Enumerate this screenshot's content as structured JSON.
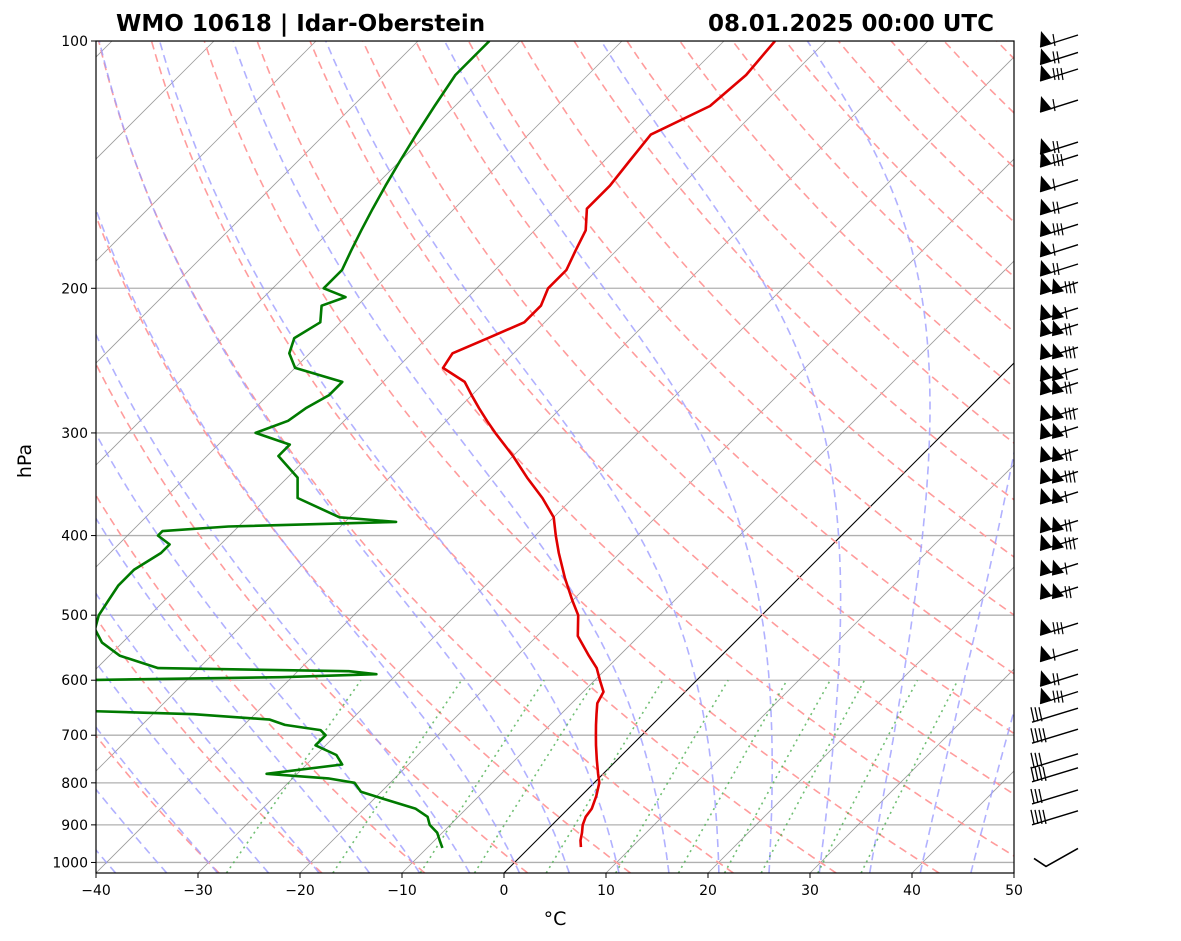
{
  "chart_data": {
    "type": "line",
    "title_left": "WMO 10618 | Idar-Oberstein",
    "title_right": "08.01.2025 00:00 UTC",
    "xlabel": "°C",
    "ylabel": "hPa",
    "xlim": [
      -40,
      50
    ],
    "ylim": [
      1030,
      100
    ],
    "y_scale": "log",
    "x_ticks": [
      "−40",
      "−30",
      "−20",
      "−10",
      "0",
      "10",
      "20",
      "30",
      "40",
      "50"
    ],
    "y_ticks": [
      "100",
      "200",
      "300",
      "400",
      "500",
      "600",
      "700",
      "800",
      "900",
      "1000"
    ],
    "grid": true,
    "background_lines": {
      "isotherms": "thin grey skewed lines every 10 °C",
      "dry_adiabats": "dashed red",
      "moist_adiabats": "dashed blue",
      "mixing_ratio": "dotted green",
      "highlighted_isotherm_c": 0
    },
    "series": [
      {
        "role": "temperature",
        "color": "#e00000",
        "points": [
          [
            100,
            -55
          ],
          [
            110,
            -54.5
          ],
          [
            120,
            -55
          ],
          [
            130,
            -58
          ],
          [
            140,
            -57.5
          ],
          [
            150,
            -57
          ],
          [
            160,
            -57
          ],
          [
            170,
            -55
          ],
          [
            180,
            -54
          ],
          [
            190,
            -53
          ],
          [
            200,
            -53
          ],
          [
            210,
            -52
          ],
          [
            220,
            -52
          ],
          [
            230,
            -54
          ],
          [
            240,
            -56
          ],
          [
            250,
            -55.5
          ],
          [
            260,
            -52
          ],
          [
            270,
            -50
          ],
          [
            280,
            -48
          ],
          [
            290,
            -46
          ],
          [
            300,
            -44
          ],
          [
            320,
            -40
          ],
          [
            340,
            -36.5
          ],
          [
            360,
            -33
          ],
          [
            380,
            -30
          ],
          [
            400,
            -28
          ],
          [
            420,
            -26
          ],
          [
            450,
            -23
          ],
          [
            480,
            -20
          ],
          [
            500,
            -18
          ],
          [
            530,
            -16
          ],
          [
            560,
            -13
          ],
          [
            580,
            -11
          ],
          [
            600,
            -9.5
          ],
          [
            620,
            -8
          ],
          [
            640,
            -7.5
          ],
          [
            660,
            -6.5
          ],
          [
            680,
            -5.5
          ],
          [
            700,
            -4.5
          ],
          [
            720,
            -3.5
          ],
          [
            750,
            -2
          ],
          [
            780,
            -0.5
          ],
          [
            800,
            0.5
          ],
          [
            830,
            1.5
          ],
          [
            860,
            2.3
          ],
          [
            880,
            2.5
          ],
          [
            900,
            3
          ],
          [
            920,
            3.7
          ],
          [
            940,
            4.3
          ],
          [
            958,
            5
          ]
        ]
      },
      {
        "role": "dewpoint",
        "color": "#007a00",
        "points": [
          [
            100,
            -83
          ],
          [
            110,
            -83
          ],
          [
            120,
            -82
          ],
          [
            130,
            -81
          ],
          [
            140,
            -80
          ],
          [
            150,
            -79
          ],
          [
            160,
            -78
          ],
          [
            170,
            -77
          ],
          [
            180,
            -76
          ],
          [
            190,
            -75
          ],
          [
            200,
            -75
          ],
          [
            205,
            -72
          ],
          [
            210,
            -73.5
          ],
          [
            220,
            -72
          ],
          [
            230,
            -73
          ],
          [
            240,
            -72
          ],
          [
            250,
            -70
          ],
          [
            260,
            -64
          ],
          [
            270,
            -64
          ],
          [
            280,
            -65
          ],
          [
            290,
            -65.5
          ],
          [
            300,
            -67.5
          ],
          [
            310,
            -63
          ],
          [
            320,
            -63
          ],
          [
            340,
            -59
          ],
          [
            360,
            -57
          ],
          [
            380,
            -51
          ],
          [
            385,
            -45
          ],
          [
            390,
            -61
          ],
          [
            395,
            -67
          ],
          [
            400,
            -67
          ],
          [
            410,
            -65
          ],
          [
            420,
            -65
          ],
          [
            440,
            -66
          ],
          [
            460,
            -66
          ],
          [
            480,
            -65.5
          ],
          [
            500,
            -65
          ],
          [
            520,
            -64
          ],
          [
            540,
            -62
          ],
          [
            560,
            -59
          ],
          [
            580,
            -54
          ],
          [
            585,
            -35
          ],
          [
            590,
            -32
          ],
          [
            595,
            -41
          ],
          [
            600,
            -61
          ],
          [
            615,
            -68
          ],
          [
            630,
            -68
          ],
          [
            650,
            -64
          ],
          [
            660,
            -46
          ],
          [
            670,
            -38
          ],
          [
            680,
            -36
          ],
          [
            690,
            -32
          ],
          [
            700,
            -31
          ],
          [
            710,
            -31
          ],
          [
            720,
            -31
          ],
          [
            740,
            -28
          ],
          [
            760,
            -26.5
          ],
          [
            780,
            -33
          ],
          [
            790,
            -26.5
          ],
          [
            800,
            -23.5
          ],
          [
            820,
            -22
          ],
          [
            840,
            -18.5
          ],
          [
            860,
            -15
          ],
          [
            880,
            -13
          ],
          [
            900,
            -12
          ],
          [
            920,
            -10.5
          ],
          [
            940,
            -9.5
          ],
          [
            960,
            -8.5
          ]
        ]
      }
    ],
    "wind_barbs_column": "right side, one barb per level from 100 to 1000 hPa"
  }
}
